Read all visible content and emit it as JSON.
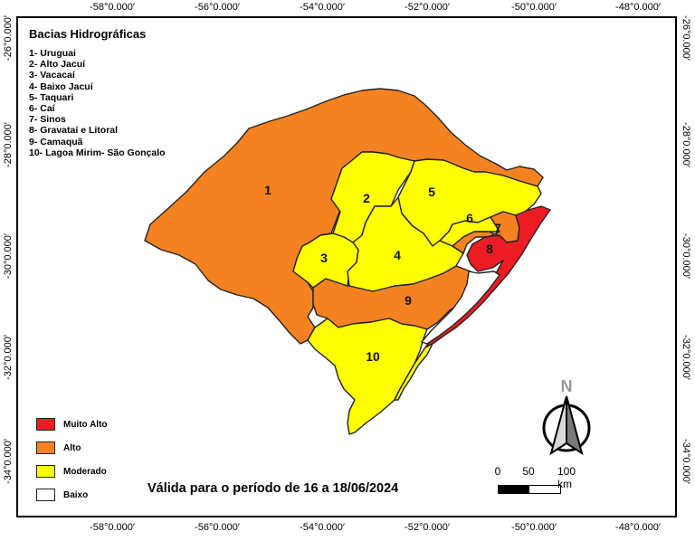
{
  "title": "Bacias Hidrográficas",
  "basins": [
    "1- Uruguai",
    "2- Alto Jacuí",
    "3- Vacacaí",
    "4- Baixo Jacuí",
    "5- Taquari",
    "6- Caí",
    "7- Sinos",
    "8- Gravataí e Litoral",
    "9- Camaquã",
    "10- Lagoa Mirim- São Gonçalo"
  ],
  "region_numbers": [
    "1",
    "2",
    "3",
    "4",
    "5",
    "6",
    "7",
    "8",
    "9",
    "10"
  ],
  "coordinates": {
    "longitudes": [
      "-58°0.000′",
      "-56°0.000′",
      "-54°0.000′",
      "-52°0.000′",
      "-50°0.000′",
      "-48°0.000′"
    ],
    "latitudes": [
      "-26°0.000′",
      "-28°0.000′",
      "-30°0.000′",
      "-32°0.000′",
      "-34°0.000′"
    ]
  },
  "legend": [
    {
      "label": "Muito Alto",
      "color": "#ed1c24"
    },
    {
      "label": "Alto",
      "color": "#f58220"
    },
    {
      "label": "Moderado",
      "color": "#ffff00"
    },
    {
      "label": "Baixo",
      "color": "#ffffff"
    }
  ],
  "region_levels": {
    "1": "Alto",
    "2": "Moderado",
    "3": "Moderado",
    "4": "Moderado",
    "5": "Moderado",
    "6": "Moderado",
    "7": "Alto",
    "8": "Muito Alto",
    "9": "Alto",
    "10": "Moderado"
  },
  "validity": "Válida para o período de 16 a 18/06/2024",
  "north_arrow": {
    "label": "N",
    "icon": "north-arrow-icon"
  },
  "scale": {
    "ticks": [
      "0",
      "50",
      "100 km"
    ]
  }
}
